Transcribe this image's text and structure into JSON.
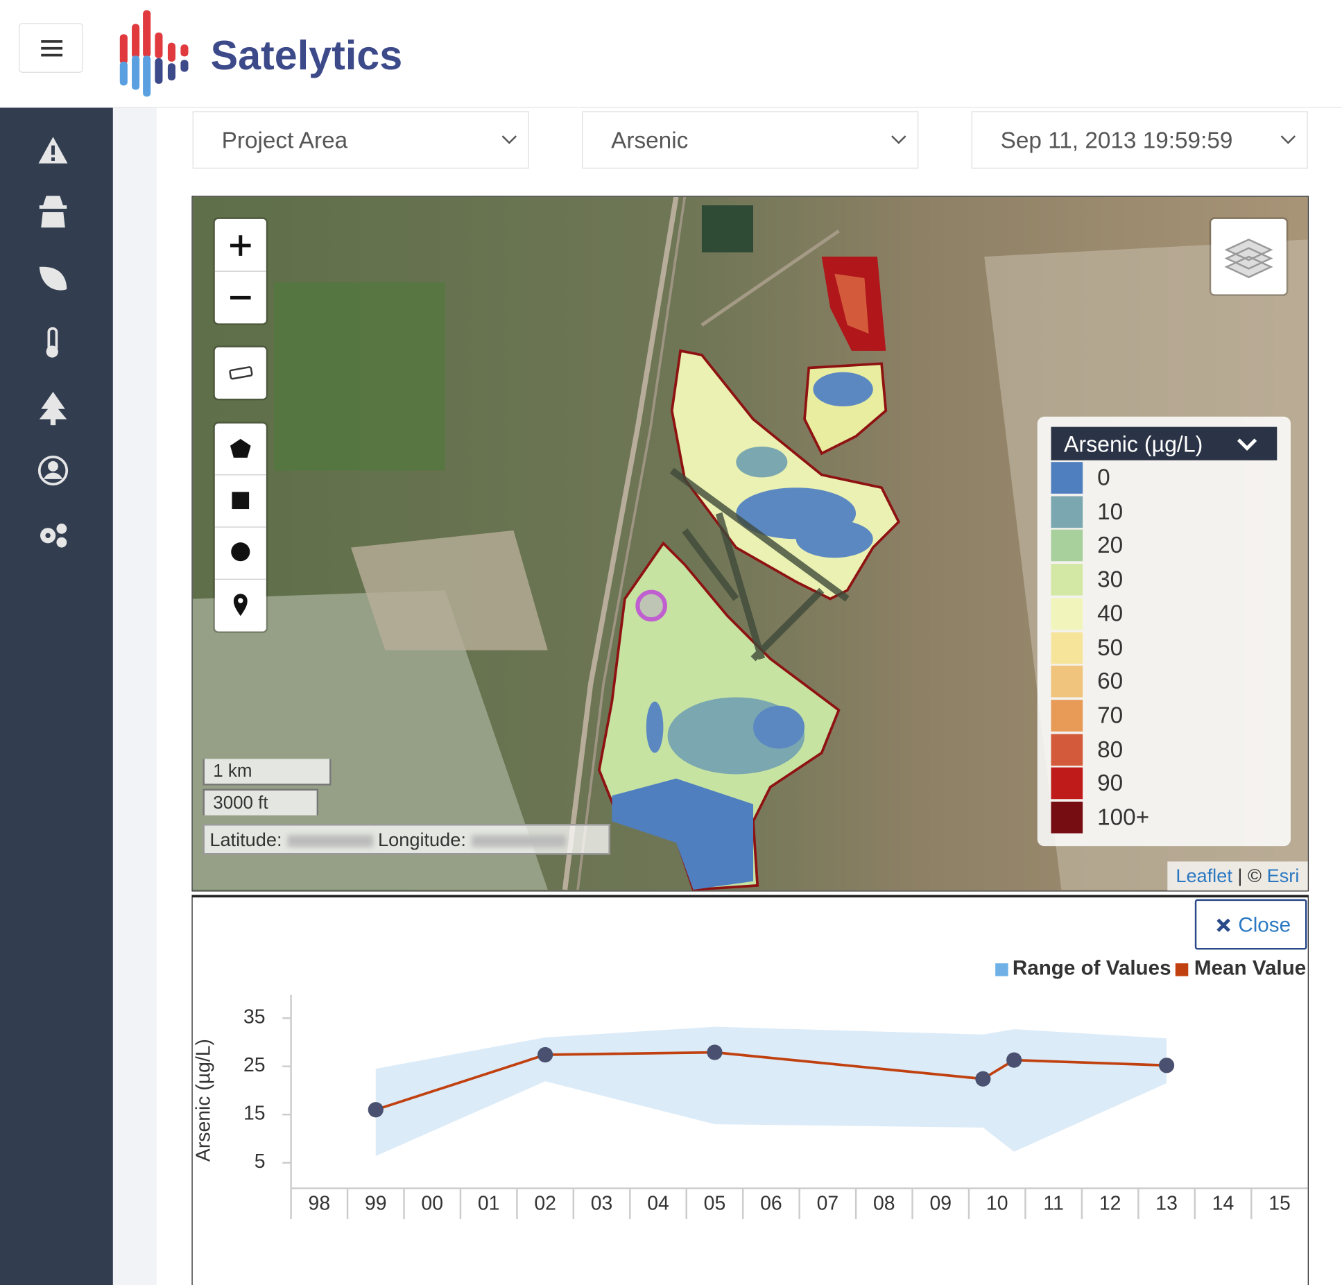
{
  "header": {
    "brand": "Satelytics"
  },
  "filters": {
    "area": "Project Area",
    "parameter": "Arsenic",
    "date": "Sep 11, 2013 19:59:59"
  },
  "map": {
    "legend": {
      "title": "Arsenic (µg/L)",
      "items": [
        {
          "label": "0",
          "color": "#4f7fbf"
        },
        {
          "label": "10",
          "color": "#7aa7b0"
        },
        {
          "label": "20",
          "color": "#a8d09c"
        },
        {
          "label": "30",
          "color": "#d2e8a4"
        },
        {
          "label": "40",
          "color": "#f1f5bb"
        },
        {
          "label": "50",
          "color": "#f7e49b"
        },
        {
          "label": "60",
          "color": "#f1c47d"
        },
        {
          "label": "70",
          "color": "#e89a57"
        },
        {
          "label": "80",
          "color": "#d35a3b"
        },
        {
          "label": "90",
          "color": "#bf1b1b"
        },
        {
          "label": "100+",
          "color": "#760d12"
        }
      ]
    },
    "scale": {
      "metric": "1 km",
      "imperial": "3000 ft"
    },
    "coords": {
      "latitude": "Latitude:",
      "longitude": "Longitude:"
    },
    "attribution": {
      "leaflet": "Leaflet",
      "separator": "| ©",
      "esri": "Esri"
    }
  },
  "close": "Close",
  "chart_data": {
    "type": "line",
    "y_label": "Arsenic (µg/L)",
    "x": [
      1999,
      2002,
      2005,
      2009.75,
      2010.3,
      2013
    ],
    "xlim": [
      1997.5,
      2015.5
    ],
    "xticks": [
      {
        "value": 1998,
        "label": "98"
      },
      {
        "value": 1999,
        "label": "99"
      },
      {
        "value": 2000,
        "label": "00"
      },
      {
        "value": 2001,
        "label": "01"
      },
      {
        "value": 2002,
        "label": "02"
      },
      {
        "value": 2003,
        "label": "03"
      },
      {
        "value": 2004,
        "label": "04"
      },
      {
        "value": 2005,
        "label": "05"
      },
      {
        "value": 2006,
        "label": "06"
      },
      {
        "value": 2007,
        "label": "07"
      },
      {
        "value": 2008,
        "label": "08"
      },
      {
        "value": 2009,
        "label": "09"
      },
      {
        "value": 2010,
        "label": "10"
      },
      {
        "value": 2011,
        "label": "11"
      },
      {
        "value": 2012,
        "label": "12"
      },
      {
        "value": 2013,
        "label": "13"
      },
      {
        "value": 2014,
        "label": "14"
      },
      {
        "value": 2015,
        "label": "15"
      }
    ],
    "ylim": [
      -0.3,
      39.8
    ],
    "yticks": [
      5,
      15,
      25,
      35
    ],
    "range": {
      "name": "Range of Values",
      "color": "#dcebf8",
      "legend_color": "#6fb1e6",
      "low": [
        6.4,
        21.9,
        13,
        12.3,
        7.3,
        21.5
      ],
      "high": [
        24.5,
        31,
        33.2,
        31.6,
        32.7,
        30.8
      ]
    },
    "series": [
      {
        "name": "Mean Value",
        "color": "#c0410f",
        "marker_color": "#4a5170",
        "values": [
          16,
          27.4,
          27.9,
          22.4,
          26.3,
          25.2
        ]
      }
    ]
  }
}
